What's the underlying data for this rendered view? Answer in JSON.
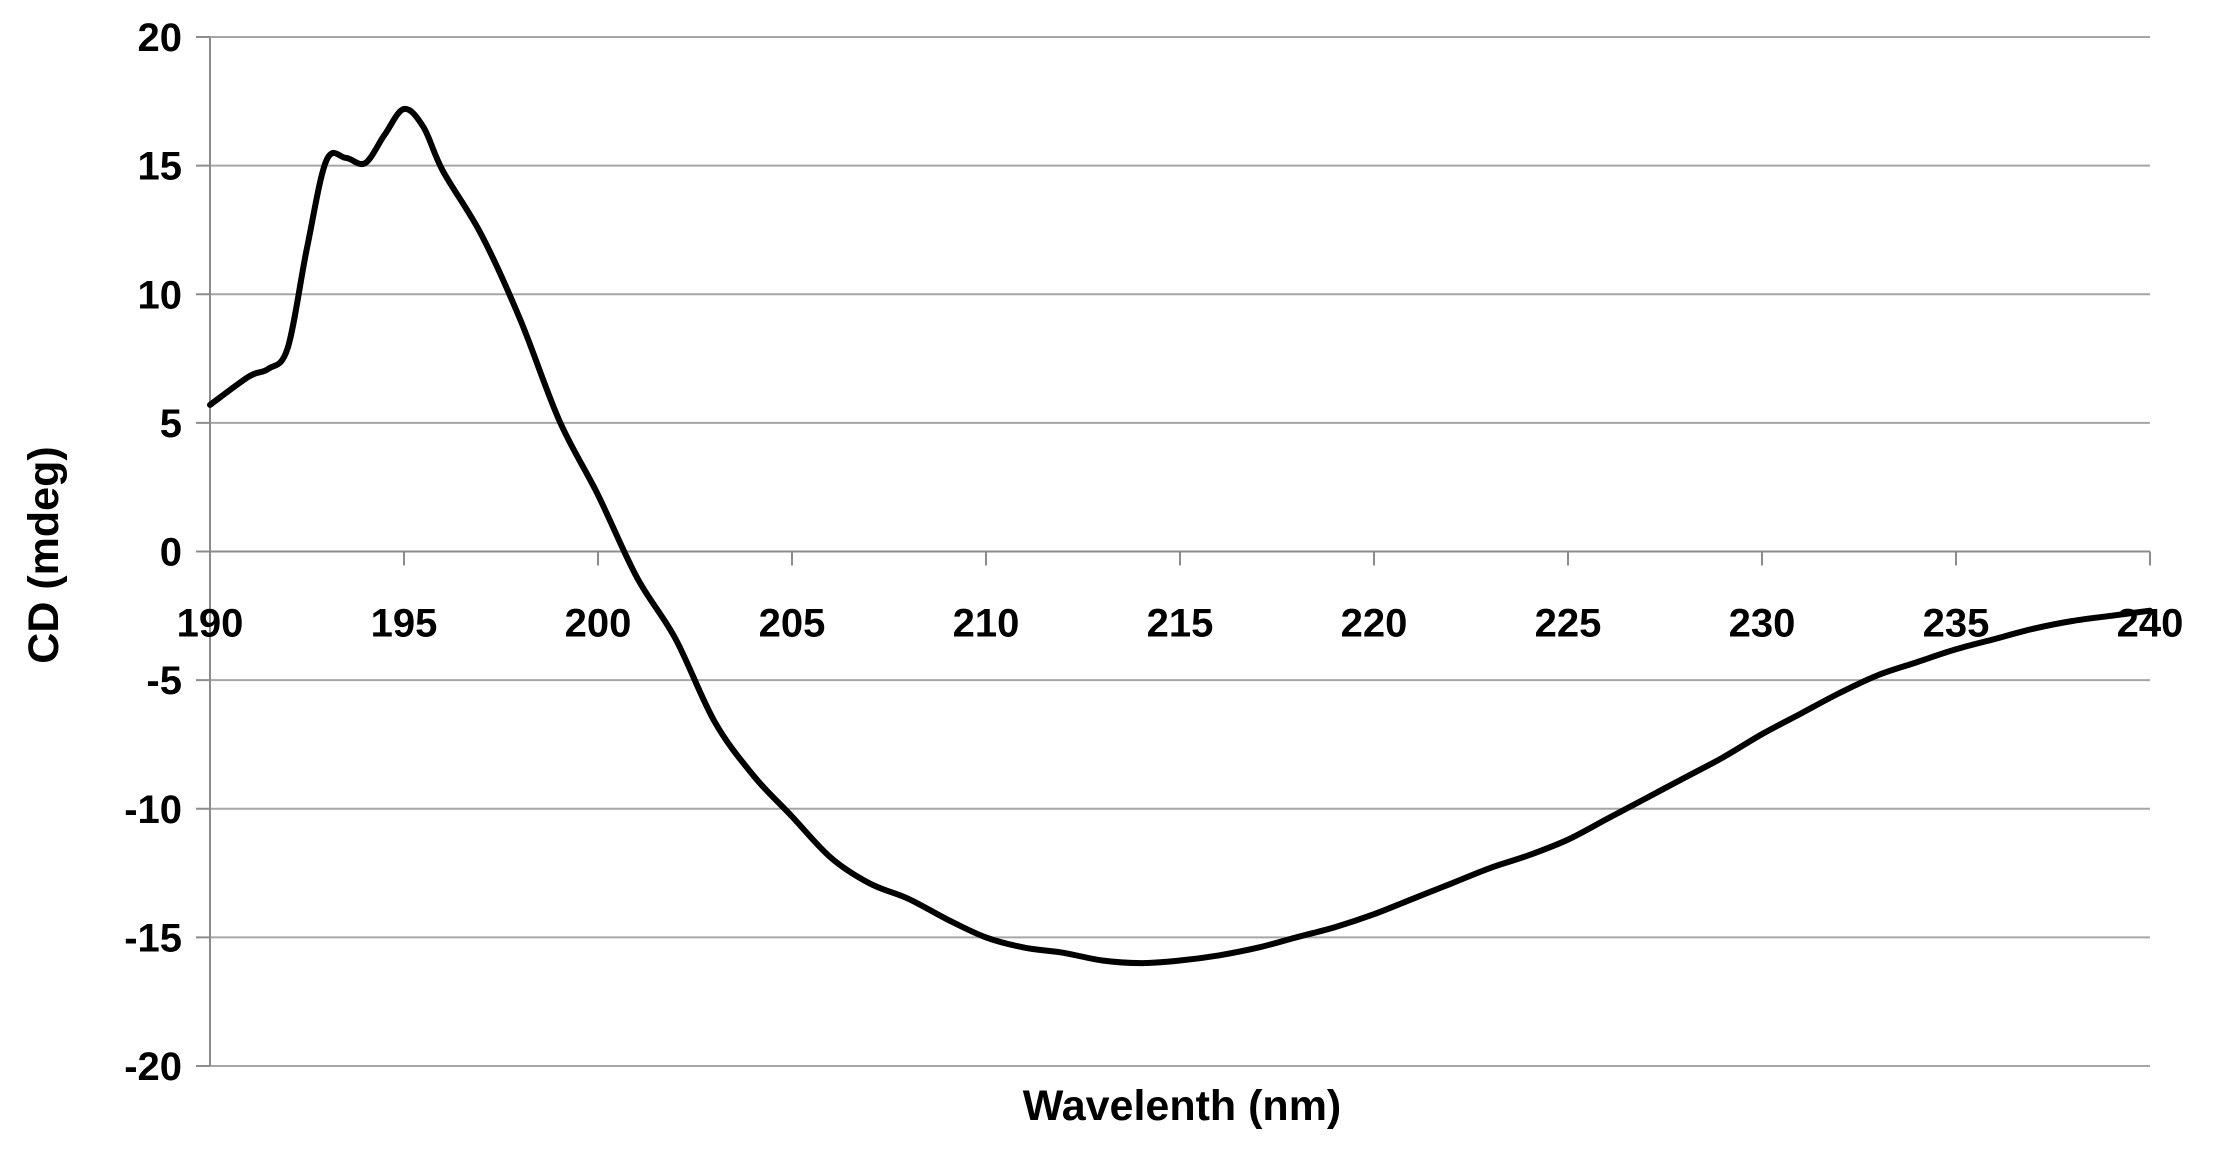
{
  "chart_data": {
    "type": "line",
    "title": "",
    "xlabel": "Wavelenth (nm)",
    "ylabel": "CD (mdeg)",
    "xlim": [
      190,
      240
    ],
    "ylim": [
      -20,
      20
    ],
    "x_ticks": [
      190,
      195,
      200,
      205,
      210,
      215,
      220,
      225,
      230,
      235,
      240
    ],
    "y_ticks": [
      20,
      15,
      10,
      5,
      0,
      -5,
      -10,
      -15,
      -20
    ],
    "x_tick_labels": [
      "190",
      "195",
      "200",
      "205",
      "210",
      "215",
      "220",
      "225",
      "230",
      "235",
      "240"
    ],
    "y_tick_labels": [
      "20",
      "15",
      "10",
      "5",
      "0",
      "-5",
      "-10",
      "-15",
      "-20"
    ],
    "grid": "horizontal",
    "legend": "none",
    "line_color": "#000000",
    "grid_color": "#a6a6a6",
    "series": [
      {
        "x": [
          190,
          191,
          191.5,
          192,
          192.5,
          193,
          193.5,
          194,
          194.5,
          195,
          195.5,
          196,
          197,
          198,
          199,
          200,
          201,
          202,
          203,
          204,
          205,
          206,
          207,
          208,
          209,
          210,
          211,
          212,
          213,
          214,
          215,
          216,
          217,
          218,
          219,
          220,
          221,
          222,
          223,
          224,
          225,
          226,
          227,
          228,
          229,
          230,
          231,
          232,
          233,
          234,
          235,
          236,
          237,
          238,
          239,
          240
        ],
        "y": [
          5.7,
          6.8,
          7.1,
          7.9,
          11.8,
          15.2,
          15.3,
          15.1,
          16.2,
          17.2,
          16.5,
          14.8,
          12.3,
          9.0,
          5.1,
          2.2,
          -1.0,
          -3.4,
          -6.6,
          -8.7,
          -10.3,
          -11.9,
          -12.9,
          -13.5,
          -14.3,
          -15.0,
          -15.4,
          -15.6,
          -15.9,
          -16.0,
          -15.9,
          -15.7,
          -15.4,
          -15.0,
          -14.6,
          -14.1,
          -13.5,
          -12.9,
          -12.3,
          -11.8,
          -11.2,
          -10.4,
          -9.6,
          -8.8,
          -8.0,
          -7.1,
          -6.3,
          -5.5,
          -4.8,
          -4.3,
          -3.8,
          -3.4,
          -3.0,
          -2.7,
          -2.5,
          -2.3
        ]
      }
    ]
  }
}
